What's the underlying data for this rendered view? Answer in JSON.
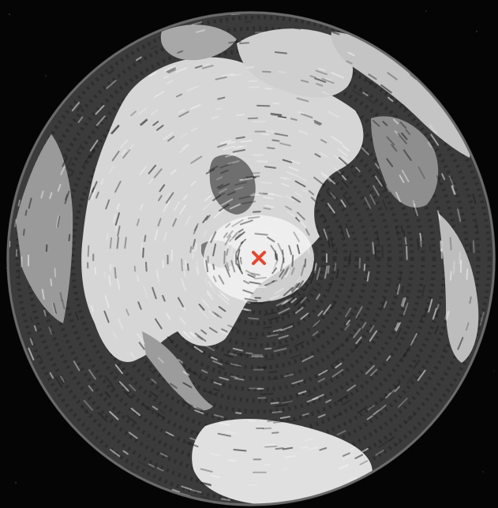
{
  "palette": {
    "background": "#050505",
    "ocean_dark": "#3b3b3b",
    "ocean_mid": "#555555",
    "land_light": "#d9d9d9",
    "land_bright": "#efefef",
    "land_gray": "#8a8a8a",
    "lake": "#6e6e6e",
    "marker": "#e8452a"
  },
  "map": {
    "projection": "azimuthal",
    "style": "hand-drawn radial brush strokes",
    "center_marker": {
      "icon": "x-mark-icon",
      "color": "#e8452a"
    }
  }
}
